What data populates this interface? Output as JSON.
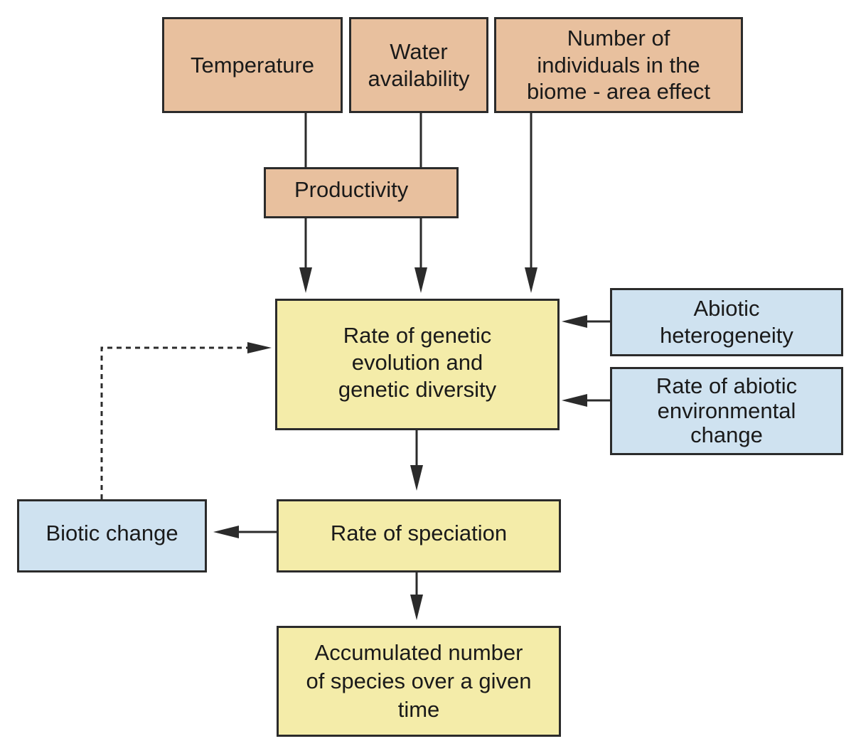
{
  "colors": {
    "driver_fill": "#e8c09e",
    "process_fill": "#f4eca9",
    "factor_fill": "#cfe2f0",
    "stroke": "#2b2b2b"
  },
  "nodes": {
    "temperature": "Temperature",
    "water_availability": "Water\navailability",
    "number_of_individuals": "Number of\nindividuals in the\nbiome - area effect",
    "productivity": "Productivity",
    "rate_of_genetic_evolution": "Rate of genetic\nevolution and\ngenetic diversity",
    "abiotic_heterogeneity": "Abiotic\nheterogeneity",
    "rate_of_abiotic_change": "Rate of abiotic\nenvironmental\nchange",
    "biotic_change": "Biotic change",
    "rate_of_speciation": "Rate of speciation",
    "accumulated_species": "Accumulated number\nof species over a given\ntime"
  },
  "edges": [
    {
      "from": "temperature",
      "to": "productivity",
      "style": "line"
    },
    {
      "from": "water_availability",
      "to": "productivity",
      "style": "line"
    },
    {
      "from": "productivity",
      "to": "rate_of_genetic_evolution",
      "style": "arrow"
    },
    {
      "from": "number_of_individuals",
      "to": "rate_of_genetic_evolution",
      "style": "arrow"
    },
    {
      "from": "abiotic_heterogeneity",
      "to": "rate_of_genetic_evolution",
      "style": "arrow"
    },
    {
      "from": "rate_of_abiotic_change",
      "to": "rate_of_genetic_evolution",
      "style": "arrow"
    },
    {
      "from": "rate_of_genetic_evolution",
      "to": "rate_of_speciation",
      "style": "arrow"
    },
    {
      "from": "rate_of_speciation",
      "to": "biotic_change",
      "style": "arrow"
    },
    {
      "from": "biotic_change",
      "to": "rate_of_genetic_evolution",
      "style": "dashed-arrow"
    },
    {
      "from": "rate_of_speciation",
      "to": "accumulated_species",
      "style": "arrow"
    }
  ]
}
